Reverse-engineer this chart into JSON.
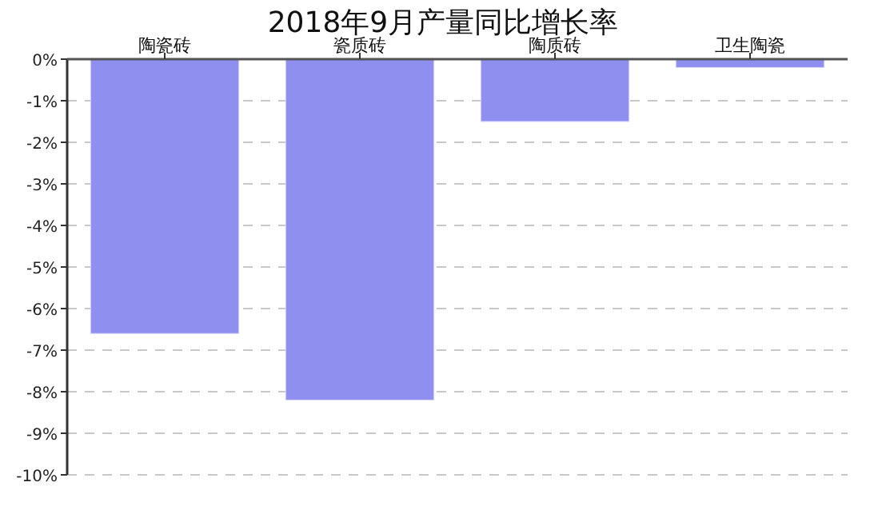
{
  "chart_data": {
    "type": "bar",
    "title": "2018年9月产量同比增长率",
    "categories": [
      "陶瓷砖",
      "瓷质砖",
      "陶质砖",
      "卫生陶瓷"
    ],
    "values": [
      -6.6,
      -8.2,
      -1.5,
      -0.2
    ],
    "color": "#8f8fef",
    "ylim": [
      -10,
      0
    ],
    "yticks": [
      {
        "value": 0,
        "label": "0%"
      },
      {
        "value": -1,
        "label": "-1%"
      },
      {
        "value": -2,
        "label": "-2%"
      },
      {
        "value": -3,
        "label": "-3%"
      },
      {
        "value": -4,
        "label": "-4%"
      },
      {
        "value": -5,
        "label": "-5%"
      },
      {
        "value": -6,
        "label": "-6%"
      },
      {
        "value": -7,
        "label": "-7%"
      },
      {
        "value": -8,
        "label": "-8%"
      },
      {
        "value": -9,
        "label": "-9%"
      },
      {
        "value": -10,
        "label": "-10%"
      }
    ],
    "grid": "y"
  }
}
